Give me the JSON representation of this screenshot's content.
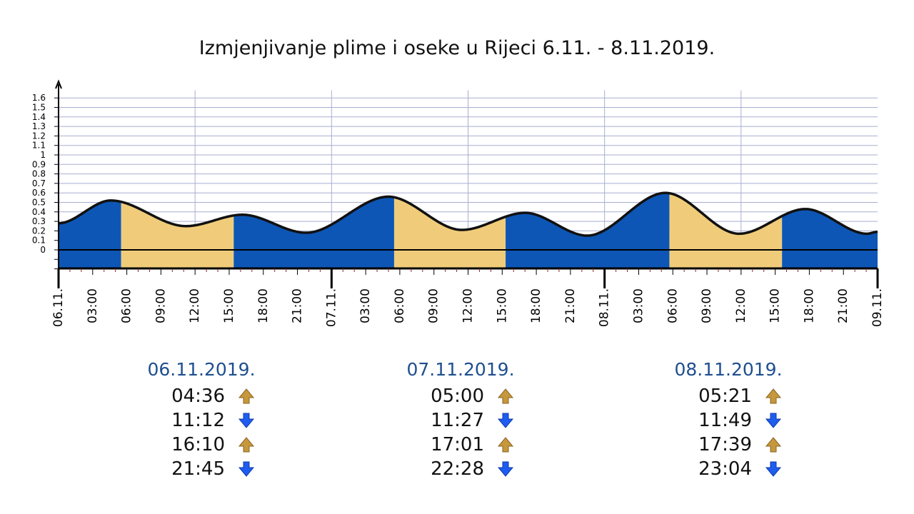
{
  "chart_data": {
    "type": "area",
    "title": "Izmjenjivanje plime i oseke u Rijeci 6.11. - 8.11.2019.",
    "y_ticks": [
      "0",
      "0.1",
      "0.2",
      "0.3",
      "0.4",
      "0.5",
      "0.6",
      "0.7",
      "0.8",
      "0.9",
      "1",
      "1.1",
      "1.2",
      "1.3",
      "1.4",
      "1.5",
      "1.6"
    ],
    "ylim": [
      -0.2,
      1.7
    ],
    "xlim_hours": [
      0,
      72
    ],
    "x_tick_labels": [
      {
        "h": 0,
        "label": "06.11."
      },
      {
        "h": 3,
        "label": "03:00"
      },
      {
        "h": 6,
        "label": "06:00"
      },
      {
        "h": 9,
        "label": "09:00"
      },
      {
        "h": 12,
        "label": "12:00"
      },
      {
        "h": 15,
        "label": "15:00"
      },
      {
        "h": 18,
        "label": "18:00"
      },
      {
        "h": 21,
        "label": "21:00"
      },
      {
        "h": 24,
        "label": "07.11."
      },
      {
        "h": 27,
        "label": "03:00"
      },
      {
        "h": 30,
        "label": "06:00"
      },
      {
        "h": 33,
        "label": "09:00"
      },
      {
        "h": 36,
        "label": "12:00"
      },
      {
        "h": 39,
        "label": "15:00"
      },
      {
        "h": 42,
        "label": "18:00"
      },
      {
        "h": 45,
        "label": "21:00"
      },
      {
        "h": 48,
        "label": "08.11."
      },
      {
        "h": 51,
        "label": "03:00"
      },
      {
        "h": 54,
        "label": "06:00"
      },
      {
        "h": 57,
        "label": "09:00"
      },
      {
        "h": 60,
        "label": "12:00"
      },
      {
        "h": 63,
        "label": "15:00"
      },
      {
        "h": 66,
        "label": "18:00"
      },
      {
        "h": 69,
        "label": "21:00"
      },
      {
        "h": 72,
        "label": "09.11."
      }
    ],
    "curve": {
      "x": [
        0,
        4.6,
        11.2,
        16.17,
        21.75,
        29.0,
        35.45,
        41.02,
        46.47,
        53.35,
        59.82,
        65.65,
        71.07,
        72
      ],
      "y": [
        0.28,
        0.52,
        0.25,
        0.37,
        0.18,
        0.56,
        0.21,
        0.39,
        0.15,
        0.6,
        0.17,
        0.43,
        0.17,
        0.19
      ]
    },
    "shading": [
      {
        "from": 0,
        "to": 5.5,
        "fill": "blue"
      },
      {
        "from": 5.5,
        "to": 15.4,
        "fill": "gold"
      },
      {
        "from": 15.4,
        "to": 29.5,
        "fill": "blue"
      },
      {
        "from": 29.5,
        "to": 39.3,
        "fill": "gold"
      },
      {
        "from": 39.3,
        "to": 53.7,
        "fill": "blue"
      },
      {
        "from": 53.7,
        "to": 63.6,
        "fill": "gold"
      },
      {
        "from": 63.6,
        "to": 72,
        "fill": "blue"
      }
    ],
    "colors": {
      "blue": "#0d56b5",
      "gold": "#f0cc7a",
      "line": "#111111",
      "grid": "#a8aed0"
    }
  },
  "days": [
    {
      "date": "06.11.2019.",
      "tides": [
        {
          "time": "04:36",
          "dir": "up"
        },
        {
          "time": "11:12",
          "dir": "down"
        },
        {
          "time": "16:10",
          "dir": "up"
        },
        {
          "time": "21:45",
          "dir": "down"
        }
      ]
    },
    {
      "date": "07.11.2019.",
      "tides": [
        {
          "time": "05:00",
          "dir": "up"
        },
        {
          "time": "11:27",
          "dir": "down"
        },
        {
          "time": "17:01",
          "dir": "up"
        },
        {
          "time": "22:28",
          "dir": "down"
        }
      ]
    },
    {
      "date": "08.11.2019.",
      "tides": [
        {
          "time": "05:21",
          "dir": "up"
        },
        {
          "time": "11:49",
          "dir": "down"
        },
        {
          "time": "17:39",
          "dir": "up"
        },
        {
          "time": "23:04",
          "dir": "down"
        }
      ]
    }
  ],
  "icons": {
    "up": "arrow-up-icon",
    "down": "arrow-down-icon"
  }
}
